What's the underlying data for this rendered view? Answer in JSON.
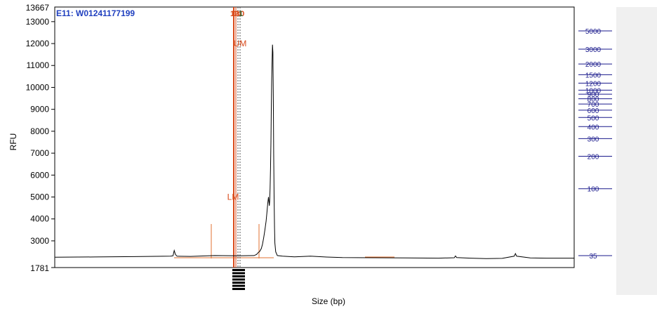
{
  "chart_data": {
    "type": "line",
    "title": "E11: W01241177199",
    "xlabel": "Size (bp)",
    "ylabel": "RFU",
    "y_ticks": [
      3000,
      4000,
      5000,
      6000,
      7000,
      8000,
      9000,
      10000,
      11000,
      12000,
      13000
    ],
    "ylim": [
      1781,
      13667
    ],
    "ymin_label": "1781",
    "ymax_label": "13667",
    "ladder": [
      {
        "label": "5000",
        "bp": 5000
      },
      {
        "label": "3000",
        "bp": 3000
      },
      {
        "label": "2000",
        "bp": 2000
      },
      {
        "label": "1500",
        "bp": 1500
      },
      {
        "label": "1200",
        "bp": 1200
      },
      {
        "label": "1000",
        "bp": 1000
      },
      {
        "label": "900",
        "bp": 900
      },
      {
        "label": "800",
        "bp": 800
      },
      {
        "label": "700",
        "bp": 700
      },
      {
        "label": "600",
        "bp": 600
      },
      {
        "label": "500",
        "bp": 500
      },
      {
        "label": "400",
        "bp": 400
      },
      {
        "label": "300",
        "bp": 300
      },
      {
        "label": "200",
        "bp": 200
      },
      {
        "label": "100",
        "bp": 100
      },
      {
        "label": "35",
        "bp": 35
      }
    ],
    "markers": [
      {
        "label": "LM",
        "bp": 35,
        "rfu": 5000
      },
      {
        "label": "UM",
        "bp": 5000,
        "rfu": 12000
      }
    ],
    "series": [
      {
        "points": [
          [
            1,
            2255
          ],
          [
            100,
            2265
          ],
          [
            200,
            2280
          ],
          [
            290,
            2300
          ],
          [
            296,
            2320
          ],
          [
            299,
            2560
          ],
          [
            302,
            2380
          ],
          [
            306,
            2300
          ],
          [
            340,
            2290
          ],
          [
            400,
            2330
          ],
          [
            460,
            2320
          ],
          [
            499,
            2330
          ],
          [
            505,
            2380
          ],
          [
            509,
            2460
          ],
          [
            513,
            2520
          ],
          [
            517,
            2650
          ],
          [
            520,
            2850
          ],
          [
            523,
            3150
          ],
          [
            526,
            3500
          ],
          [
            529,
            3900
          ],
          [
            531,
            4300
          ],
          [
            533,
            4700
          ],
          [
            535,
            5000
          ],
          [
            536,
            4800
          ],
          [
            537,
            4600
          ],
          [
            538,
            4800
          ],
          [
            539,
            5400
          ],
          [
            540,
            6300
          ],
          [
            541,
            7500
          ],
          [
            542,
            9000
          ],
          [
            543,
            10400
          ],
          [
            544,
            11300
          ],
          [
            545,
            11950
          ],
          [
            546,
            11600
          ],
          [
            547,
            9500
          ],
          [
            548,
            7000
          ],
          [
            549,
            5000
          ],
          [
            550,
            3600
          ],
          [
            551,
            2900
          ],
          [
            553,
            2500
          ],
          [
            557,
            2330
          ],
          [
            570,
            2300
          ],
          [
            600,
            2270
          ],
          [
            640,
            2300
          ],
          [
            680,
            2260
          ],
          [
            720,
            2240
          ],
          [
            800,
            2230
          ],
          [
            880,
            2220
          ],
          [
            960,
            2210
          ],
          [
            1000,
            2230
          ],
          [
            1003,
            2310
          ],
          [
            1006,
            2240
          ],
          [
            1040,
            2210
          ],
          [
            1080,
            2190
          ],
          [
            1120,
            2200
          ],
          [
            1150,
            2300
          ],
          [
            1153,
            2420
          ],
          [
            1156,
            2300
          ],
          [
            1190,
            2220
          ],
          [
            1230,
            2210
          ],
          [
            1290,
            2210
          ],
          [
            1300,
            2210
          ]
        ]
      }
    ],
    "peak_labels": [
      "12",
      "14",
      "10",
      "1"
    ]
  }
}
